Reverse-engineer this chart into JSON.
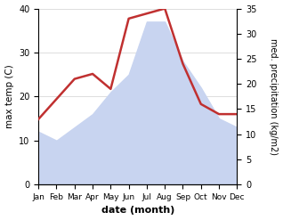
{
  "months": [
    "Jan",
    "Feb",
    "Mar",
    "Apr",
    "May",
    "Jun",
    "Jul",
    "Aug",
    "Sep",
    "Oct",
    "Nov",
    "Dec"
  ],
  "max_temp": [
    12,
    10,
    13,
    16,
    21,
    25,
    37,
    37,
    28,
    22,
    15,
    13
  ],
  "precipitation": [
    13,
    17,
    21,
    22,
    19,
    33,
    34,
    35,
    24,
    16,
    14,
    14
  ],
  "temp_fill_color": "#c8d4f0",
  "precip_color": "#c03030",
  "ylim_temp": [
    0,
    40
  ],
  "ylim_precip": [
    0,
    35
  ],
  "yticks_temp": [
    0,
    10,
    20,
    30,
    40
  ],
  "yticks_precip": [
    0,
    5,
    10,
    15,
    20,
    25,
    30,
    35
  ],
  "xlabel": "date (month)",
  "ylabel_left": "max temp (C)",
  "ylabel_right": "med. precipitation (kg/m2)",
  "bg_color": "#ffffff",
  "grid_color": "#d0d0d0"
}
